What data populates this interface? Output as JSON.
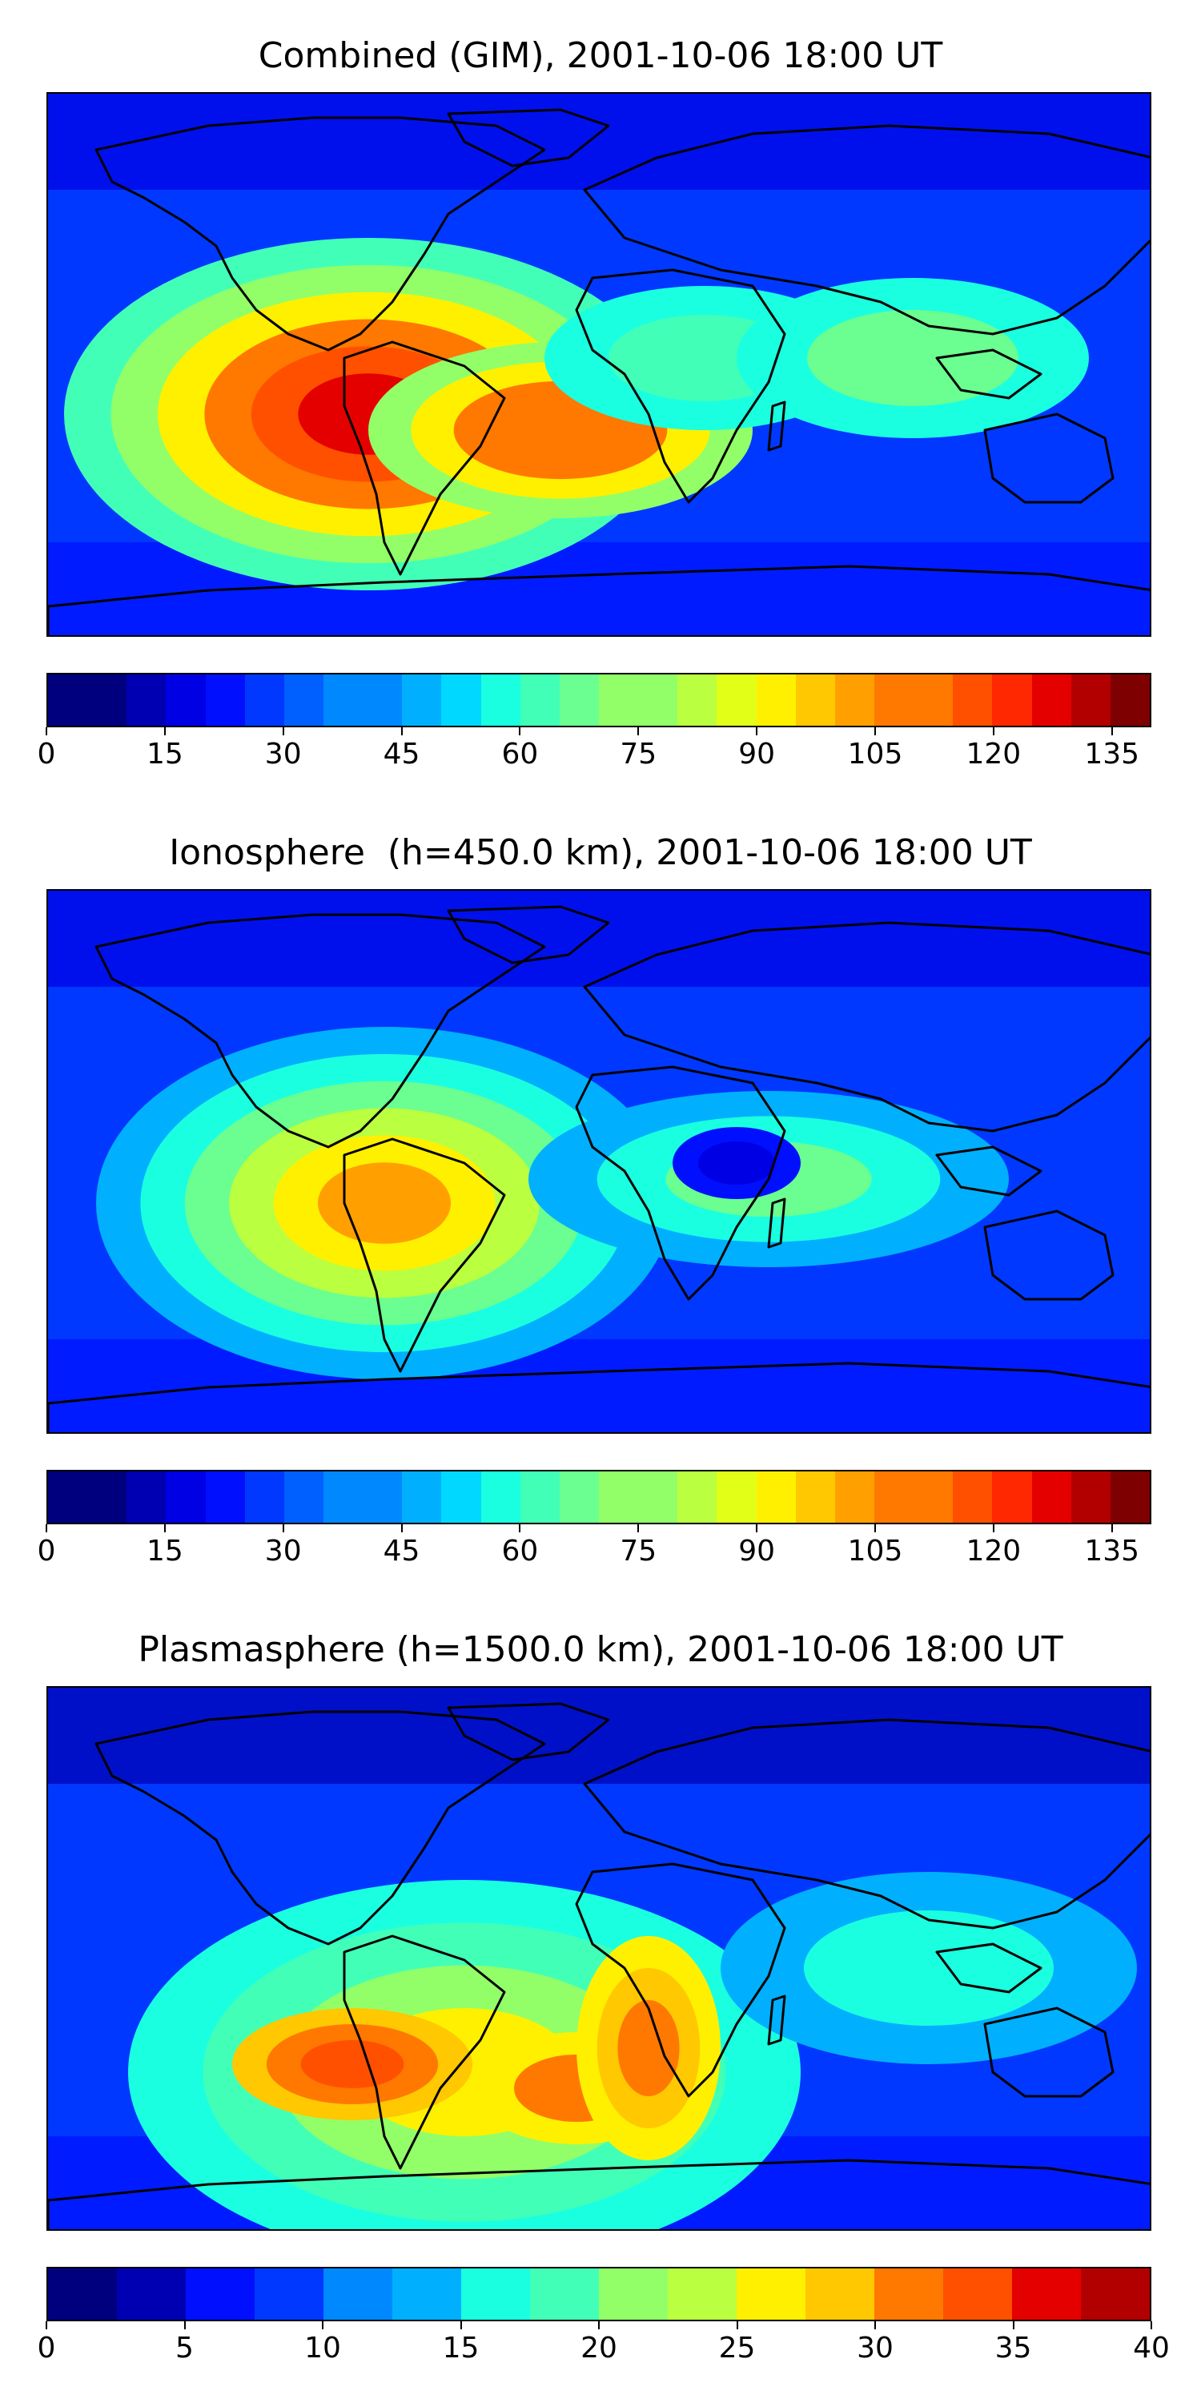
{
  "panels": [
    {
      "title": "Combined (GIM), 2001-10-06 18:00 UT",
      "colorbar": {
        "min": 0,
        "max": 140,
        "step": 5,
        "ticks": [
          "0",
          "15",
          "30",
          "45",
          "60",
          "75",
          "90",
          "105",
          "120",
          "135"
        ],
        "tick_values": [
          0,
          15,
          30,
          45,
          60,
          75,
          90,
          105,
          120,
          135
        ]
      },
      "hotspots": [
        {
          "name": "south-america-max",
          "value": 125
        },
        {
          "name": "south-atlantic-max",
          "value": 110
        },
        {
          "name": "africa-low",
          "value": 50
        }
      ]
    },
    {
      "title": "Ionosphere  (h=450.0 km), 2001-10-06 18:00 UT",
      "colorbar": {
        "min": 0,
        "max": 140,
        "step": 5,
        "ticks": [
          "0",
          "15",
          "30",
          "45",
          "60",
          "75",
          "90",
          "105",
          "120",
          "135"
        ],
        "tick_values": [
          0,
          15,
          30,
          45,
          60,
          75,
          90,
          105,
          120,
          135
        ]
      },
      "hotspots": [
        {
          "name": "south-america-max",
          "value": 100
        },
        {
          "name": "africa-low",
          "value": 15
        }
      ]
    },
    {
      "title": "Plasmasphere (h=1500.0 km), 2001-10-06 18:00 UT",
      "colorbar": {
        "min": 0,
        "max": 40,
        "step": 2.5,
        "ticks": [
          "0",
          "5",
          "10",
          "15",
          "20",
          "25",
          "30",
          "35",
          "40"
        ],
        "tick_values": [
          0,
          5,
          10,
          15,
          20,
          25,
          30,
          35,
          40
        ]
      },
      "hotspots": [
        {
          "name": "atlantic-max",
          "value": 33
        },
        {
          "name": "africa-max",
          "value": 32
        }
      ]
    }
  ],
  "colormap": [
    "#00007f",
    "#0000b2",
    "#0000e5",
    "#0010ff",
    "#0038ff",
    "#0060ff",
    "#0088ff",
    "#00b0ff",
    "#00d8ff",
    "#1affe0",
    "#42ffb8",
    "#6aff90",
    "#92ff68",
    "#baff40",
    "#e2ff18",
    "#fff000",
    "#ffc800",
    "#ffa000",
    "#ff7800",
    "#ff5000",
    "#ff2800",
    "#e50000",
    "#b20000",
    "#7f0000"
  ],
  "colors": {
    "background_low": "#1f4fff",
    "coastline": "#000000"
  }
}
